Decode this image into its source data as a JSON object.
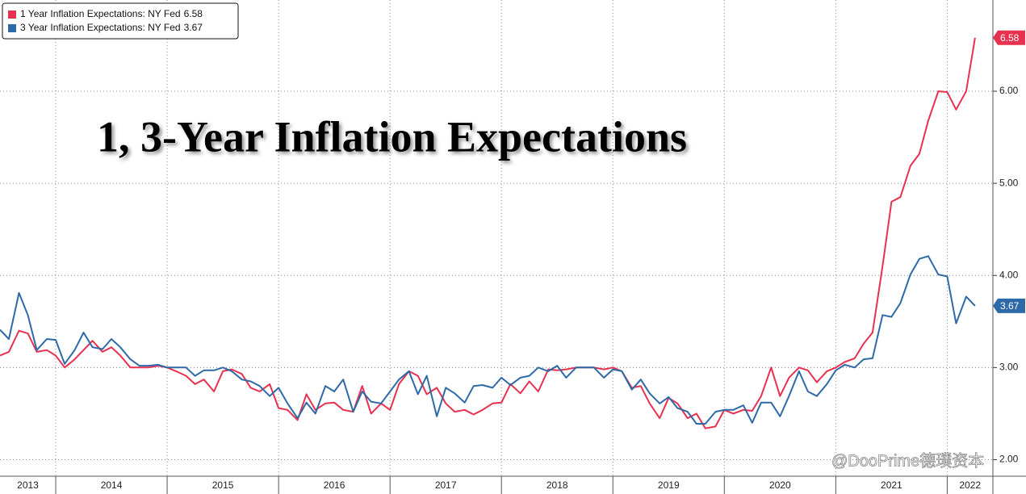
{
  "chart_data": {
    "type": "line",
    "title": "1, 3-Year Inflation Expectations",
    "watermark": "@DooPrime德璞资本",
    "xlim": [
      2013.5,
      2022.41
    ],
    "xticks": [
      {
        "value": 2013,
        "label": "2013"
      },
      {
        "value": 2014,
        "label": "2014"
      },
      {
        "value": 2015,
        "label": "2015"
      },
      {
        "value": 2016,
        "label": "2016"
      },
      {
        "value": 2017,
        "label": "2017"
      },
      {
        "value": 2018,
        "label": "2018"
      },
      {
        "value": 2019,
        "label": "2019"
      },
      {
        "value": 2020,
        "label": "2020"
      },
      {
        "value": 2021,
        "label": "2021"
      },
      {
        "value": 2022,
        "label": "2022"
      }
    ],
    "ylim": [
      1.82,
      6.99
    ],
    "yticks": [
      {
        "value": 2,
        "label": "2.00"
      },
      {
        "value": 3,
        "label": "3.00"
      },
      {
        "value": 4,
        "label": "4.00"
      },
      {
        "value": 5,
        "label": "5.00"
      },
      {
        "value": 6,
        "label": "6.00"
      }
    ],
    "grid": true,
    "legend": "top-left",
    "x": [
      2013.5,
      2013.58,
      2013.67,
      2013.75,
      2013.83,
      2013.92,
      2014,
      2014.08,
      2014.17,
      2014.25,
      2014.33,
      2014.42,
      2014.5,
      2014.58,
      2014.67,
      2014.75,
      2014.83,
      2014.92,
      2015,
      2015.08,
      2015.17,
      2015.25,
      2015.33,
      2015.42,
      2015.5,
      2015.58,
      2015.67,
      2015.75,
      2015.83,
      2015.92,
      2016,
      2016.08,
      2016.17,
      2016.25,
      2016.33,
      2016.42,
      2016.5,
      2016.58,
      2016.67,
      2016.75,
      2016.83,
      2016.92,
      2017,
      2017.08,
      2017.17,
      2017.25,
      2017.33,
      2017.42,
      2017.5,
      2017.58,
      2017.67,
      2017.75,
      2017.83,
      2017.92,
      2018,
      2018.08,
      2018.17,
      2018.25,
      2018.33,
      2018.42,
      2018.5,
      2018.58,
      2018.67,
      2018.75,
      2018.83,
      2018.92,
      2019,
      2019.08,
      2019.17,
      2019.25,
      2019.33,
      2019.42,
      2019.5,
      2019.58,
      2019.67,
      2019.75,
      2019.83,
      2019.92,
      2020,
      2020.08,
      2020.17,
      2020.25,
      2020.33,
      2020.42,
      2020.5,
      2020.58,
      2020.67,
      2020.75,
      2020.83,
      2020.92,
      2021,
      2021.08,
      2021.17,
      2021.25,
      2021.33,
      2021.42,
      2021.5,
      2021.58,
      2021.67,
      2021.75,
      2021.83,
      2021.92,
      2022,
      2022.08,
      2022.17,
      2022.25
    ],
    "series": [
      {
        "name": "1 Year Inflation Expectations: NY Fed",
        "color": "#e8314f",
        "value_labels": {
          "105": "6.58"
        },
        "values": [
          3.13,
          3.17,
          3.4,
          3.37,
          3.17,
          3.19,
          3.13,
          3.0,
          3.09,
          3.19,
          3.29,
          3.17,
          3.22,
          3.13,
          3.0,
          3.0,
          3.0,
          3.02,
          3.0,
          2.96,
          2.91,
          2.82,
          2.87,
          2.74,
          2.96,
          2.98,
          2.93,
          2.78,
          2.74,
          2.82,
          2.56,
          2.54,
          2.43,
          2.71,
          2.54,
          2.61,
          2.62,
          2.54,
          2.52,
          2.8,
          2.5,
          2.61,
          2.54,
          2.82,
          2.96,
          2.91,
          2.71,
          2.78,
          2.61,
          2.52,
          2.54,
          2.49,
          2.54,
          2.61,
          2.62,
          2.82,
          2.72,
          2.85,
          2.74,
          2.98,
          2.97,
          2.98,
          3.0,
          3.0,
          3.0,
          2.98,
          3.0,
          2.96,
          2.78,
          2.8,
          2.61,
          2.45,
          2.67,
          2.61,
          2.45,
          2.5,
          2.34,
          2.36,
          2.54,
          2.5,
          2.54,
          2.53,
          2.69,
          3.0,
          2.69,
          2.89,
          3.0,
          2.97,
          2.84,
          2.96,
          3.0,
          3.06,
          3.1,
          3.26,
          3.38,
          4.1,
          4.8,
          4.85,
          5.19,
          5.32,
          5.68,
          6.0,
          5.99,
          5.8,
          6.0,
          6.58
        ]
      },
      {
        "name": "3 Year Inflation Expectations: NY Fed",
        "color": "#2e6aa8",
        "value_labels": {
          "105": "3.67"
        },
        "values": [
          3.41,
          3.31,
          3.81,
          3.57,
          3.19,
          3.31,
          3.3,
          3.04,
          3.19,
          3.38,
          3.22,
          3.2,
          3.31,
          3.22,
          3.09,
          3.02,
          3.02,
          3.03,
          3.0,
          3.0,
          3.0,
          2.91,
          2.97,
          2.97,
          3.0,
          2.96,
          2.87,
          2.85,
          2.8,
          2.69,
          2.78,
          2.61,
          2.45,
          2.62,
          2.5,
          2.8,
          2.74,
          2.87,
          2.52,
          2.74,
          2.63,
          2.61,
          2.74,
          2.87,
          2.96,
          2.71,
          2.91,
          2.47,
          2.78,
          2.72,
          2.62,
          2.8,
          2.81,
          2.78,
          2.89,
          2.81,
          2.89,
          2.91,
          3.0,
          2.96,
          3.02,
          2.89,
          3.0,
          3.0,
          3.0,
          2.89,
          2.98,
          2.96,
          2.76,
          2.87,
          2.72,
          2.61,
          2.68,
          2.56,
          2.52,
          2.39,
          2.39,
          2.52,
          2.54,
          2.54,
          2.59,
          2.4,
          2.62,
          2.62,
          2.47,
          2.69,
          2.96,
          2.74,
          2.69,
          2.82,
          2.97,
          3.03,
          3.0,
          3.09,
          3.1,
          3.57,
          3.55,
          3.7,
          4.01,
          4.18,
          4.21,
          4.01,
          3.99,
          3.48,
          3.77,
          3.67
        ]
      }
    ]
  }
}
